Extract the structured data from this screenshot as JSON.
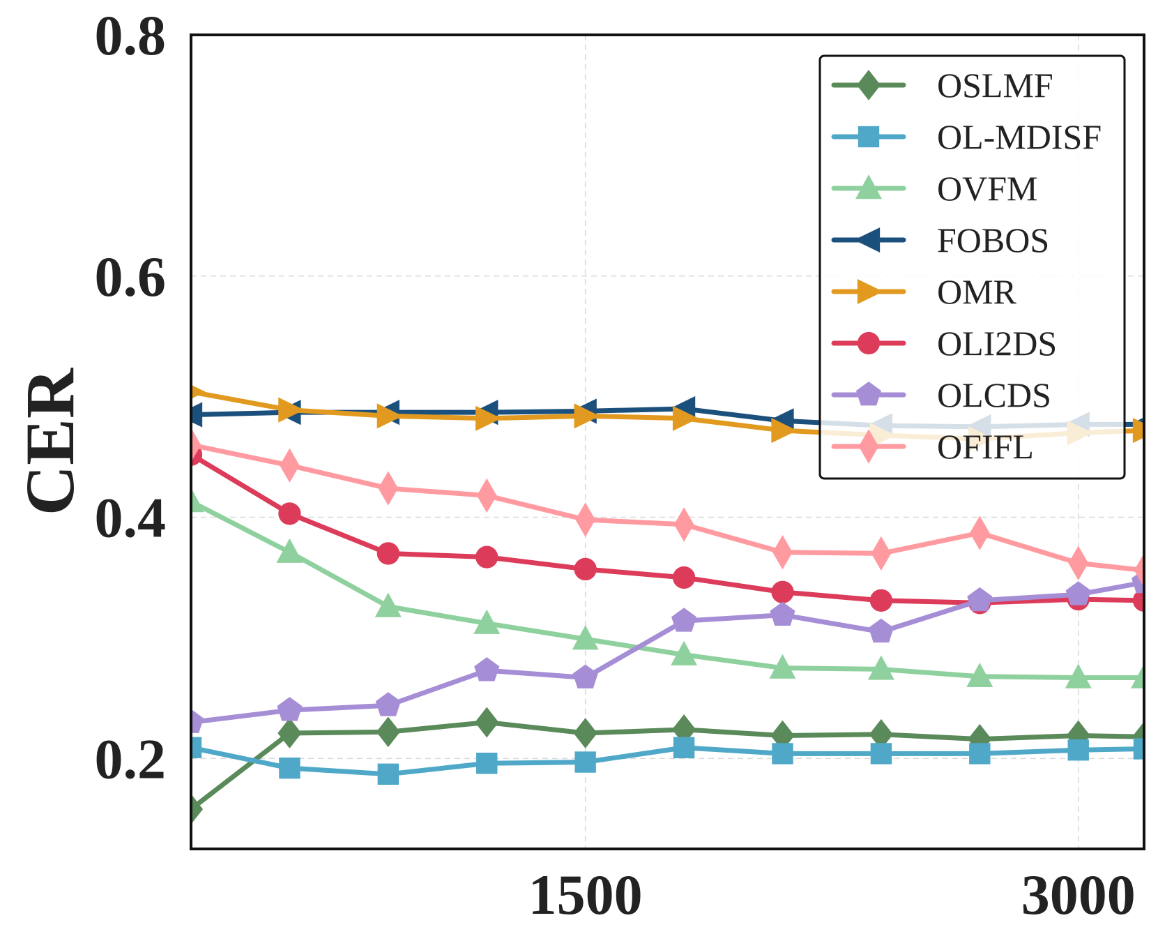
{
  "chart_data": {
    "type": "line",
    "xlabel": "",
    "ylabel": "CER",
    "xlim": [
      300,
      3200
    ],
    "ylim": [
      0.125,
      0.8
    ],
    "x_ticks": [
      {
        "value": 1500,
        "label": "1500"
      },
      {
        "value": 3000,
        "label": "3000"
      }
    ],
    "y_ticks": [
      {
        "value": 0.2,
        "label": "0.2"
      },
      {
        "value": 0.4,
        "label": "0.4"
      },
      {
        "value": 0.6,
        "label": "0.6"
      },
      {
        "value": 0.8,
        "label": "0.8"
      }
    ],
    "grid": true,
    "legend_position": "top-right",
    "x": [
      300,
      600,
      900,
      1200,
      1500,
      1800,
      2100,
      2400,
      2700,
      3000,
      3200
    ],
    "series": [
      {
        "name": "OSLMF",
        "color": "#5a8a5a",
        "marker": "diamond",
        "values": [
          0.158,
          0.221,
          0.222,
          0.23,
          0.221,
          0.224,
          0.219,
          0.22,
          0.216,
          0.219,
          0.218
        ]
      },
      {
        "name": "OL-MDISF",
        "color": "#4fa8c8",
        "marker": "square",
        "values": [
          0.209,
          0.192,
          0.187,
          0.196,
          0.197,
          0.209,
          0.204,
          0.204,
          0.204,
          0.207,
          0.208
        ]
      },
      {
        "name": "OVFM",
        "color": "#8fd19e",
        "marker": "triangle-up",
        "values": [
          0.413,
          0.371,
          0.326,
          0.312,
          0.299,
          0.286,
          0.275,
          0.274,
          0.268,
          0.267,
          0.267
        ]
      },
      {
        "name": "FOBOS",
        "color": "#1b4f7c",
        "marker": "triangle-left",
        "values": [
          0.485,
          0.487,
          0.487,
          0.487,
          0.488,
          0.49,
          0.48,
          0.476,
          0.475,
          0.477,
          0.477
        ]
      },
      {
        "name": "OMR",
        "color": "#e19a1f",
        "marker": "triangle-right",
        "values": [
          0.504,
          0.489,
          0.484,
          0.482,
          0.484,
          0.482,
          0.472,
          0.468,
          0.465,
          0.47,
          0.472
        ]
      },
      {
        "name": "OLI2DS",
        "color": "#dc3c5a",
        "marker": "circle",
        "values": [
          0.452,
          0.403,
          0.37,
          0.367,
          0.357,
          0.35,
          0.338,
          0.331,
          0.329,
          0.332,
          0.331
        ]
      },
      {
        "name": "OLCDS",
        "color": "#a58ed6",
        "marker": "pentagon",
        "values": [
          0.23,
          0.24,
          0.244,
          0.273,
          0.267,
          0.314,
          0.319,
          0.305,
          0.331,
          0.336,
          0.346
        ]
      },
      {
        "name": "OFIFL",
        "color": "#ff9aa0",
        "marker": "thin-diamond",
        "values": [
          0.46,
          0.443,
          0.424,
          0.418,
          0.398,
          0.394,
          0.371,
          0.37,
          0.387,
          0.362,
          0.356
        ]
      }
    ]
  }
}
